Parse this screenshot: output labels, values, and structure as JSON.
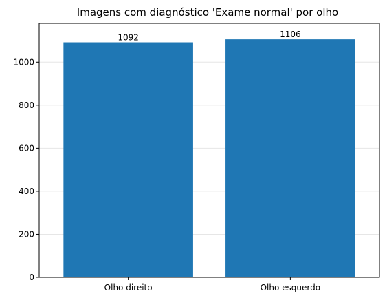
{
  "chart_data": {
    "type": "bar",
    "title": "Imagens com diagnóstico 'Exame normal' por olho",
    "xlabel": "",
    "ylabel": "",
    "categories": [
      "Olho direito",
      "Olho esquerdo"
    ],
    "values": [
      1092,
      1106
    ],
    "data_labels": [
      "1092",
      "1106"
    ],
    "ylim": [
      0,
      1180
    ],
    "yticks": [
      0,
      200,
      400,
      600,
      800,
      1000
    ],
    "grid": "horizontal",
    "bar_color": "#1f77b4",
    "grid_color": "#e6e6e6"
  }
}
